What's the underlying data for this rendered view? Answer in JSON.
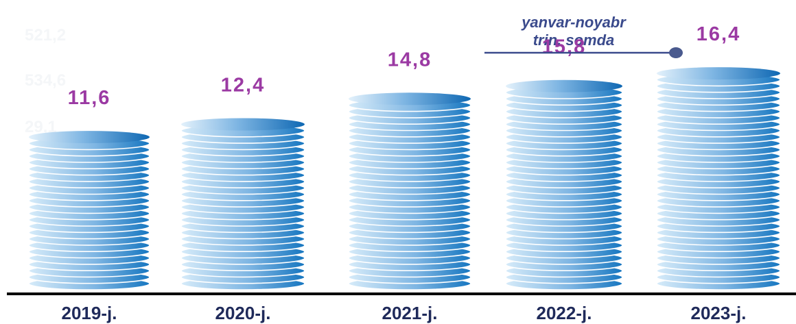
{
  "chart_data": {
    "type": "bar",
    "categories": [
      "2019-j.",
      "2020-j.",
      "2021-j.",
      "2022-j.",
      "2023-j."
    ],
    "values": [
      11.6,
      12.4,
      14.8,
      15.8,
      16.4
    ],
    "value_labels": [
      "11,6",
      "12,4",
      "14,8",
      "15,8",
      "16,4"
    ],
    "annotation": {
      "line1": "yanvar-noyabr",
      "line2": "trin. somda"
    },
    "faint_labels": [
      "521,2",
      "534,6",
      "29,1"
    ],
    "colors": {
      "value_label": "#9b3aa3",
      "coin_light": "#d6ebf9",
      "coin_dark": "#1676c0",
      "axis": "#000000",
      "category_label": "#1f2a5a",
      "annotation": "#3a4a8c"
    }
  }
}
